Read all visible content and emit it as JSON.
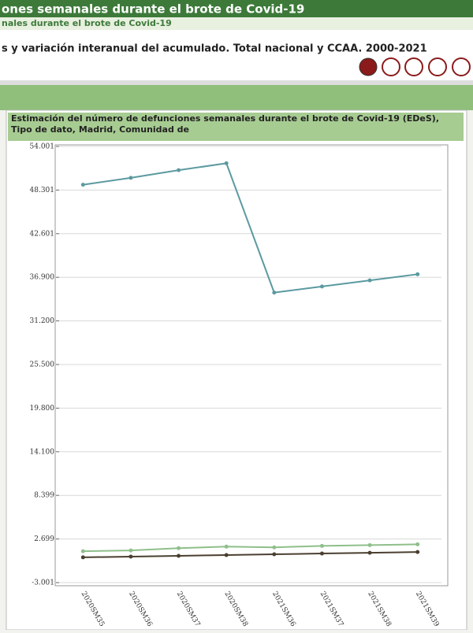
{
  "header": {
    "title": "ones semanales durante el brote de Covid-19",
    "breadcrumb": "nales durante el brote de Covid-19",
    "subtitle": "s y variación interanual del acumulado. Total nacional y CCAA. 2000-2021"
  },
  "chart_data": {
    "type": "line",
    "title": "Estimación del número de defunciones semanales durante el brote de Covid-19 (EDeS), Tipo de dato, Madrid, Comunidad de",
    "categories": [
      "2020SM35",
      "2020SM36",
      "2020SM37",
      "2020SM38",
      "2021SM36",
      "2021SM37",
      "2021SM38",
      "2021SM39"
    ],
    "series": [
      {
        "color": "#5b9aa0",
        "values": [
          49000,
          49900,
          50900,
          51800,
          34900,
          35700,
          36500,
          37300
        ]
      },
      {
        "color": "#8fbf8a",
        "values": [
          1100,
          1200,
          1500,
          1700,
          1600,
          1800,
          1900,
          2000
        ]
      },
      {
        "color": "#4a3f30",
        "values": [
          300,
          400,
          500,
          600,
          700,
          800,
          900,
          1000
        ]
      }
    ],
    "ylim": [
      -3001,
      54001
    ],
    "yticks": [
      {
        "value": 54001,
        "label": "54.001"
      },
      {
        "value": 48301,
        "label": "48.301"
      },
      {
        "value": 42601,
        "label": "42.601"
      },
      {
        "value": 36900,
        "label": "36.900"
      },
      {
        "value": 31200,
        "label": "31.200"
      },
      {
        "value": 25500,
        "label": "25.500"
      },
      {
        "value": 19800,
        "label": "19.800"
      },
      {
        "value": 14100,
        "label": "14.100"
      },
      {
        "value": 8399,
        "label": "8.399"
      },
      {
        "value": 2699,
        "label": "2.699"
      },
      {
        "value": -3001,
        "label": "-3.001"
      }
    ],
    "grid": true
  }
}
